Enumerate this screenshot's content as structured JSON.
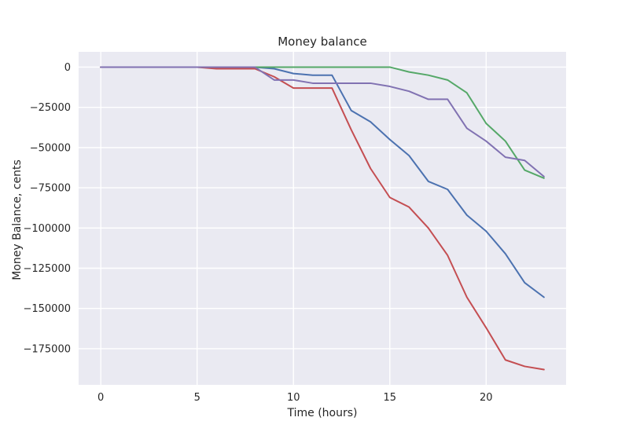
{
  "chart_data": {
    "type": "line",
    "title": "Money balance",
    "xlabel": "Time (hours)",
    "ylabel": "Money Balance, cents",
    "xlim": [
      -1.15,
      24.15
    ],
    "ylim": [
      -197500,
      9500
    ],
    "x_ticks": [
      0,
      5,
      10,
      15,
      20
    ],
    "y_ticks": [
      0,
      -25000,
      -50000,
      -75000,
      -100000,
      -125000,
      -150000,
      -175000
    ],
    "x_tick_labels": [
      "0",
      "5",
      "10",
      "15",
      "20"
    ],
    "y_tick_labels": [
      "0",
      "−25000",
      "−50000",
      "−75000",
      "−100000",
      "−125000",
      "−150000",
      "−175000"
    ],
    "grid": true,
    "background": "#EAEAF2",
    "x": [
      0,
      1,
      2,
      3,
      4,
      5,
      6,
      7,
      8,
      9,
      10,
      11,
      12,
      13,
      14,
      15,
      16,
      17,
      18,
      19,
      20,
      21,
      22,
      23
    ],
    "series": [
      {
        "color": "#4C72B0",
        "values": [
          0,
          0,
          0,
          0,
          0,
          0,
          0,
          0,
          0,
          -1000,
          -4000,
          -5000,
          -5000,
          -27000,
          -34000,
          -45000,
          -55000,
          -71000,
          -76000,
          -92000,
          -102000,
          -116000,
          -134000,
          -143000
        ]
      },
      {
        "color": "#55A868",
        "values": [
          0,
          0,
          0,
          0,
          0,
          0,
          0,
          0,
          0,
          0,
          0,
          0,
          0,
          0,
          0,
          0,
          -3000,
          -5000,
          -8000,
          -16000,
          -35000,
          -46000,
          -64000,
          -69000
        ]
      },
      {
        "color": "#C44E52",
        "values": [
          0,
          0,
          0,
          0,
          0,
          0,
          -1000,
          -1000,
          -1000,
          -6000,
          -13000,
          -13000,
          -13000,
          -39000,
          -63000,
          -81000,
          -87000,
          -100000,
          -117000,
          -143000,
          -162000,
          -182000,
          -186000,
          -188000
        ]
      },
      {
        "color": "#8172B2",
        "values": [
          0,
          0,
          0,
          0,
          0,
          0,
          0,
          0,
          0,
          -8000,
          -8000,
          -10000,
          -10000,
          -10000,
          -10000,
          -12000,
          -15000,
          -20000,
          -20000,
          -38000,
          -46000,
          -56000,
          -58000,
          -68000
        ]
      }
    ]
  }
}
